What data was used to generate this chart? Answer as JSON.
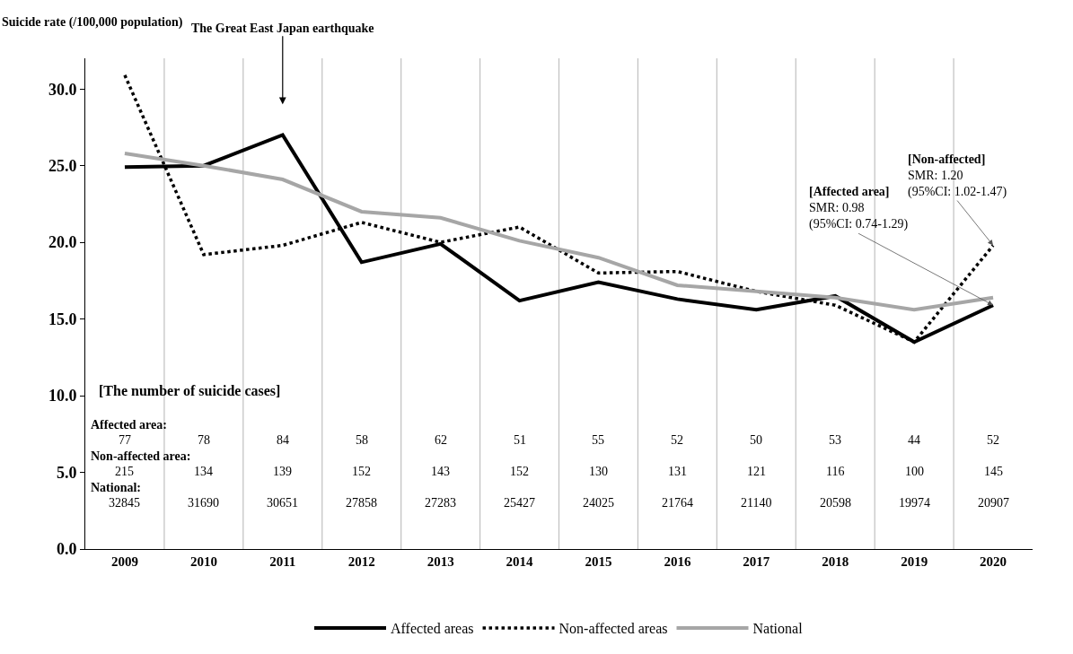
{
  "chart_data": {
    "type": "line",
    "ylabel": "Suicide rate (/100,000 population)",
    "categories": [
      "2009",
      "2010",
      "2011",
      "2012",
      "2013",
      "2014",
      "2015",
      "2016",
      "2017",
      "2018",
      "2019",
      "2020"
    ],
    "series": [
      {
        "name": "Affected areas",
        "color": "#000000",
        "line_style": "solid",
        "values": [
          24.9,
          25.0,
          27.0,
          18.7,
          19.9,
          16.2,
          17.4,
          16.3,
          15.6,
          16.5,
          13.5,
          15.9
        ]
      },
      {
        "name": "Non-affected areas",
        "color": "#000000",
        "line_style": "dotted",
        "values": [
          30.9,
          19.2,
          19.8,
          21.3,
          20.0,
          21.0,
          18.0,
          18.1,
          16.8,
          15.9,
          13.5,
          19.8
        ]
      },
      {
        "name": "National",
        "color": "#a6a6a6",
        "line_style": "solid",
        "values": [
          25.8,
          25.0,
          24.1,
          22.0,
          21.6,
          20.1,
          19.0,
          17.2,
          16.8,
          16.4,
          15.6,
          16.4
        ]
      }
    ],
    "ylim": [
      0,
      32
    ],
    "yticks": [
      {
        "value": 0,
        "label": "0.0"
      },
      {
        "value": 5,
        "label": "5.0"
      },
      {
        "value": 10,
        "label": "10.0"
      },
      {
        "value": 15,
        "label": "15.0"
      },
      {
        "value": 20,
        "label": "20.0"
      },
      {
        "value": 25,
        "label": "25.0"
      },
      {
        "value": 30,
        "label": "30.0"
      }
    ],
    "grid": "x",
    "legend": "bottom",
    "marker": "none",
    "annotations": [
      "The Great East Japan earthquake",
      {
        "text": "[Affected area]\nSMR: 0.98\n(95%CI: 0.74-1.29)",
        "x": "2020",
        "y": 15.9
      },
      {
        "text": "[Non-affected]\nSMR: 1.20\n(95%CI: 1.02-1.47)",
        "x": "2020",
        "y": 19.8
      },
      "[The number of suicide cases]",
      "Affected area:",
      "77",
      "78",
      "84",
      "58",
      "62",
      "51",
      "55",
      "52",
      "50",
      "53",
      "44",
      "52",
      "Non-affected area:",
      "215",
      "134",
      "139",
      "152",
      "143",
      "152",
      "130",
      "131",
      "121",
      "116",
      "100",
      "145",
      "National:",
      "32845",
      "31690",
      "30651",
      "27858",
      "27283",
      "25427",
      "24025",
      "21764",
      "21140",
      "20598",
      "19974",
      "20907"
    ]
  }
}
